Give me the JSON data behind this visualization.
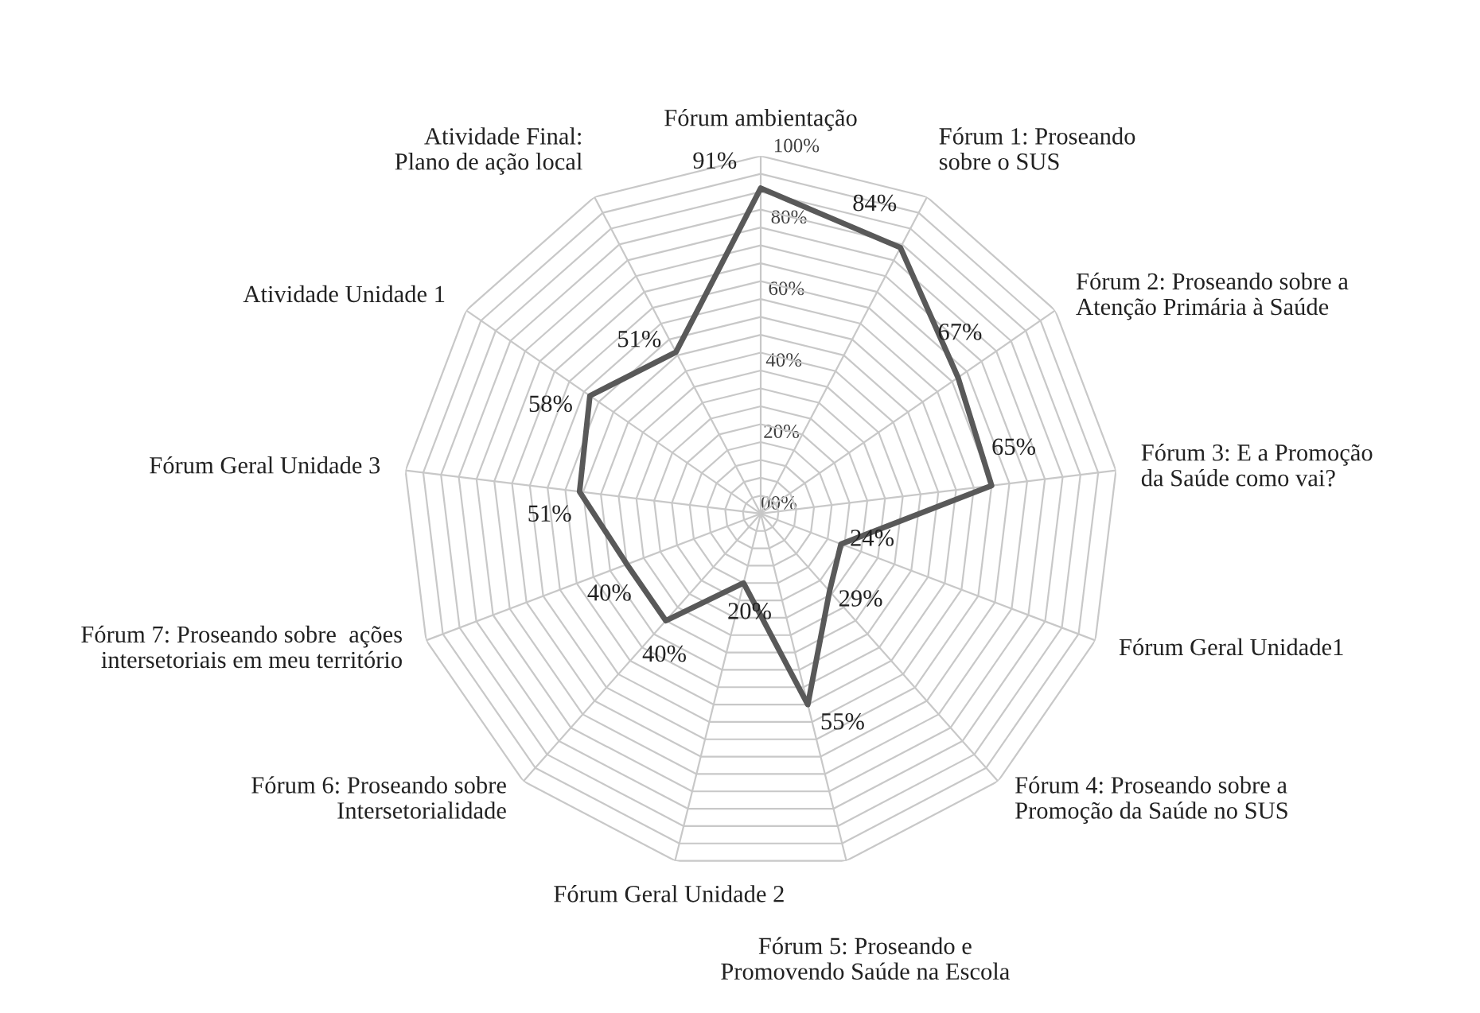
{
  "chart_data": {
    "type": "radar",
    "categories": [
      "Fórum ambientação",
      "Fórum 1: Proseando sobre o SUS",
      "Fórum 2: Proseando sobre a Atenção Primária à Saúde",
      "Fórum 3: E a Promoção da Saúde como vai?",
      "Fórum Geral Unidade1",
      "Fórum 4: Proseando sobre a Promoção da Saúde no SUS",
      "Fórum 5: Proseando e Promovendo Saúde na Escola",
      "Fórum Geral Unidade 2",
      "Fórum 6: Proseando sobre Intersetorialidade",
      "Fórum 7: Proseando sobre  ações intersetoriais em meu território",
      "Fórum Geral Unidade 3",
      "Atividade Unidade 1",
      "Atividade Final: Plano de ação local"
    ],
    "series": [
      {
        "color": "#595959",
        "values": [
          91,
          84,
          67,
          65,
          24,
          29,
          55,
          20,
          40,
          40,
          51,
          58,
          51
        ],
        "value_labels": [
          "91%",
          "84%",
          "67%",
          "65%",
          "24%",
          "29%",
          "55%",
          "20%",
          "40%",
          "40%",
          "51%",
          "58%",
          "51%"
        ]
      }
    ],
    "ylim": [
      0,
      100
    ],
    "yticks": [
      {
        "value": 0,
        "label": "00%"
      },
      {
        "value": 20,
        "label": "20%"
      },
      {
        "value": 40,
        "label": "40%"
      },
      {
        "value": 60,
        "label": "60%"
      },
      {
        "value": 80,
        "label": "80%"
      },
      {
        "value": 100,
        "label": "100%"
      }
    ],
    "grid": true,
    "marker": "none",
    "line_style": "solid"
  }
}
